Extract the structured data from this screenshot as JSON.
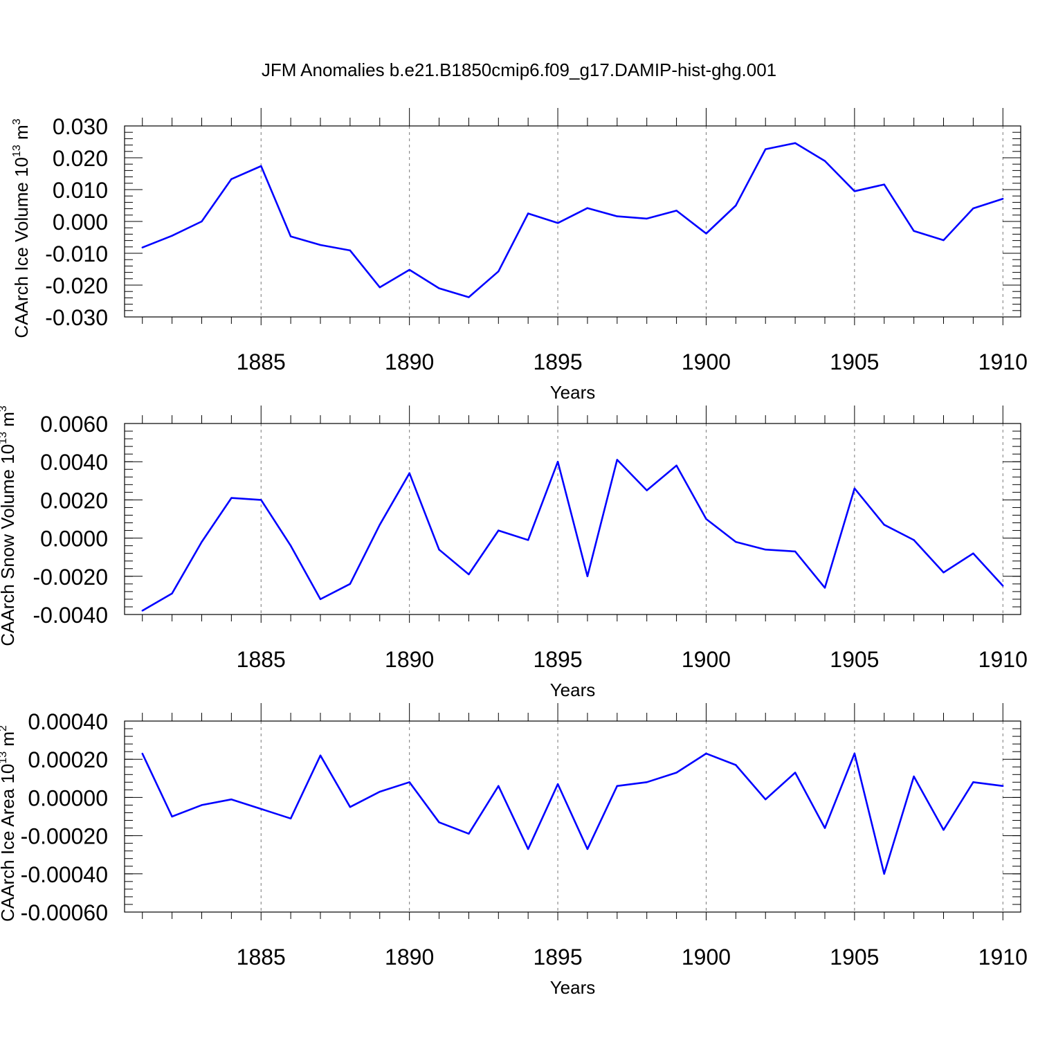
{
  "figure_title": "JFM Anomalies b.e21.B1850cmip6.f09_g17.DAMIP-hist-ghg.001",
  "colors": {
    "line": "#0000ff",
    "axis": "#000000",
    "grid": "#777777"
  },
  "chart_data": [
    {
      "type": "line",
      "ylabel": "CAArch Ice Volume 10",
      "ylabel_exp": "13",
      "ylabel_unit": " m",
      "ylabel_unit_exp": "3",
      "xlabel": "Years",
      "xlim": [
        1881,
        1910
      ],
      "ylim": [
        -0.03,
        0.03
      ],
      "xticks": [
        "1885",
        "1890",
        "1895",
        "1900",
        "1905",
        "1910"
      ],
      "yticks": [
        "0.030",
        "0.020",
        "0.010",
        "0.000",
        "-0.010",
        "-0.020",
        "-0.030"
      ],
      "grid": "vertical dashed at major x ticks",
      "x": [
        1881,
        1882,
        1883,
        1884,
        1885,
        1886,
        1887,
        1888,
        1889,
        1890,
        1891,
        1892,
        1893,
        1894,
        1895,
        1896,
        1897,
        1898,
        1899,
        1900,
        1901,
        1902,
        1903,
        1904,
        1905,
        1906,
        1907,
        1908,
        1909,
        1910
      ],
      "values": [
        -0.0082,
        -0.0045,
        0.0,
        0.0133,
        0.0174,
        -0.0047,
        -0.0074,
        -0.0091,
        -0.0207,
        -0.0152,
        -0.021,
        -0.0238,
        -0.0157,
        0.0025,
        -0.0005,
        0.0042,
        0.0016,
        0.0009,
        0.0034,
        -0.0038,
        0.005,
        0.0227,
        0.0246,
        0.019,
        0.0095,
        0.0116,
        -0.003,
        -0.0059,
        0.0041,
        0.0071
      ]
    },
    {
      "type": "line",
      "ylabel": "CAArch Snow Volume 10",
      "ylabel_exp": "13",
      "ylabel_unit": " m",
      "ylabel_unit_exp": "3",
      "xlabel": "Years",
      "xlim": [
        1881,
        1910
      ],
      "ylim": [
        -0.004,
        0.006
      ],
      "xticks": [
        "1885",
        "1890",
        "1895",
        "1900",
        "1905",
        "1910"
      ],
      "yticks": [
        "0.0060",
        "0.0040",
        "0.0020",
        "0.0000",
        "-0.0020",
        "-0.0040"
      ],
      "grid": "vertical dashed at major x ticks",
      "x": [
        1881,
        1882,
        1883,
        1884,
        1885,
        1886,
        1887,
        1888,
        1889,
        1890,
        1891,
        1892,
        1893,
        1894,
        1895,
        1896,
        1897,
        1898,
        1899,
        1900,
        1901,
        1902,
        1903,
        1904,
        1905,
        1906,
        1907,
        1908,
        1909,
        1910
      ],
      "values": [
        -0.0038,
        -0.0029,
        -0.0002,
        0.0021,
        0.002,
        -0.0004,
        -0.0032,
        -0.0024,
        0.0007,
        0.0034,
        -0.0006,
        -0.0019,
        0.0004,
        -0.0001,
        0.004,
        -0.002,
        0.0041,
        0.0025,
        0.0038,
        0.001,
        -0.0002,
        -0.0006,
        -0.0007,
        -0.0026,
        0.0026,
        0.0007,
        -0.0001,
        -0.0018,
        -0.0008,
        -0.0025
      ]
    },
    {
      "type": "line",
      "ylabel": "CAArch Ice Area 10",
      "ylabel_exp": "13",
      "ylabel_unit": " m",
      "ylabel_unit_exp": "2",
      "xlabel": "Years",
      "xlim": [
        1881,
        1910
      ],
      "ylim": [
        -0.0006,
        0.0004
      ],
      "xticks": [
        "1885",
        "1890",
        "1895",
        "1900",
        "1905",
        "1910"
      ],
      "yticks": [
        "0.00040",
        "0.00020",
        "0.00000",
        "-0.00020",
        "-0.00040",
        "-0.00060"
      ],
      "grid": "vertical dashed at major x ticks",
      "x": [
        1881,
        1882,
        1883,
        1884,
        1885,
        1886,
        1887,
        1888,
        1889,
        1890,
        1891,
        1892,
        1893,
        1894,
        1895,
        1896,
        1897,
        1898,
        1899,
        1900,
        1901,
        1902,
        1903,
        1904,
        1905,
        1906,
        1907,
        1908,
        1909,
        1910
      ],
      "values": [
        0.00023,
        -0.0001,
        -4e-05,
        -1e-05,
        -6e-05,
        -0.00011,
        0.00022,
        -5e-05,
        3e-05,
        8e-05,
        -0.00013,
        -0.00019,
        6e-05,
        -0.00027,
        7e-05,
        -0.00027,
        6e-05,
        8e-05,
        0.00013,
        0.00023,
        0.00017,
        -1e-05,
        0.00013,
        -0.00016,
        0.00023,
        -0.0004,
        0.00011,
        -0.00017,
        8e-05,
        6e-05
      ]
    }
  ]
}
